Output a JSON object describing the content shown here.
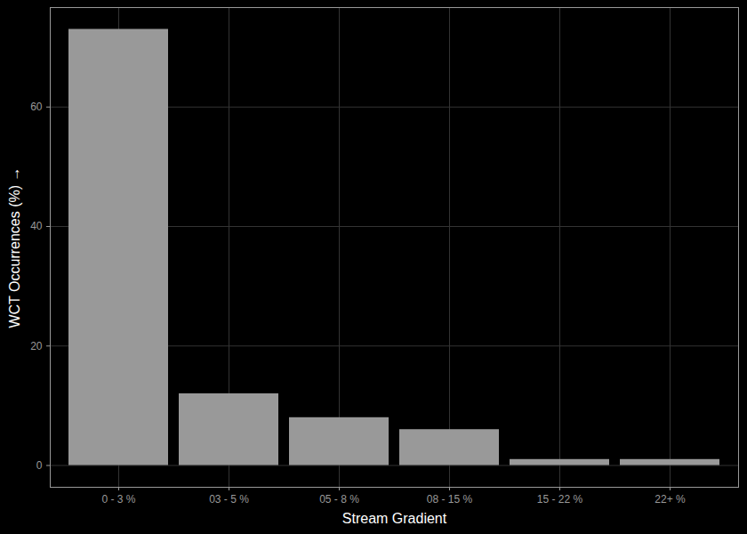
{
  "chart_data": {
    "type": "bar",
    "xlabel": "Stream Gradient",
    "ylabel": "WCT Occurrences (%)",
    "categories": [
      "0 - 3 %",
      "03 - 5 %",
      "05 - 8 %",
      "08 - 15 %",
      "15 - 22 %",
      "22+ %"
    ],
    "values": [
      73,
      12,
      8,
      6,
      1,
      1
    ],
    "color": "#999999",
    "ylim": [
      -3.65,
      76.65
    ],
    "yticks": [
      0,
      20,
      40,
      60
    ],
    "grid": true
  }
}
